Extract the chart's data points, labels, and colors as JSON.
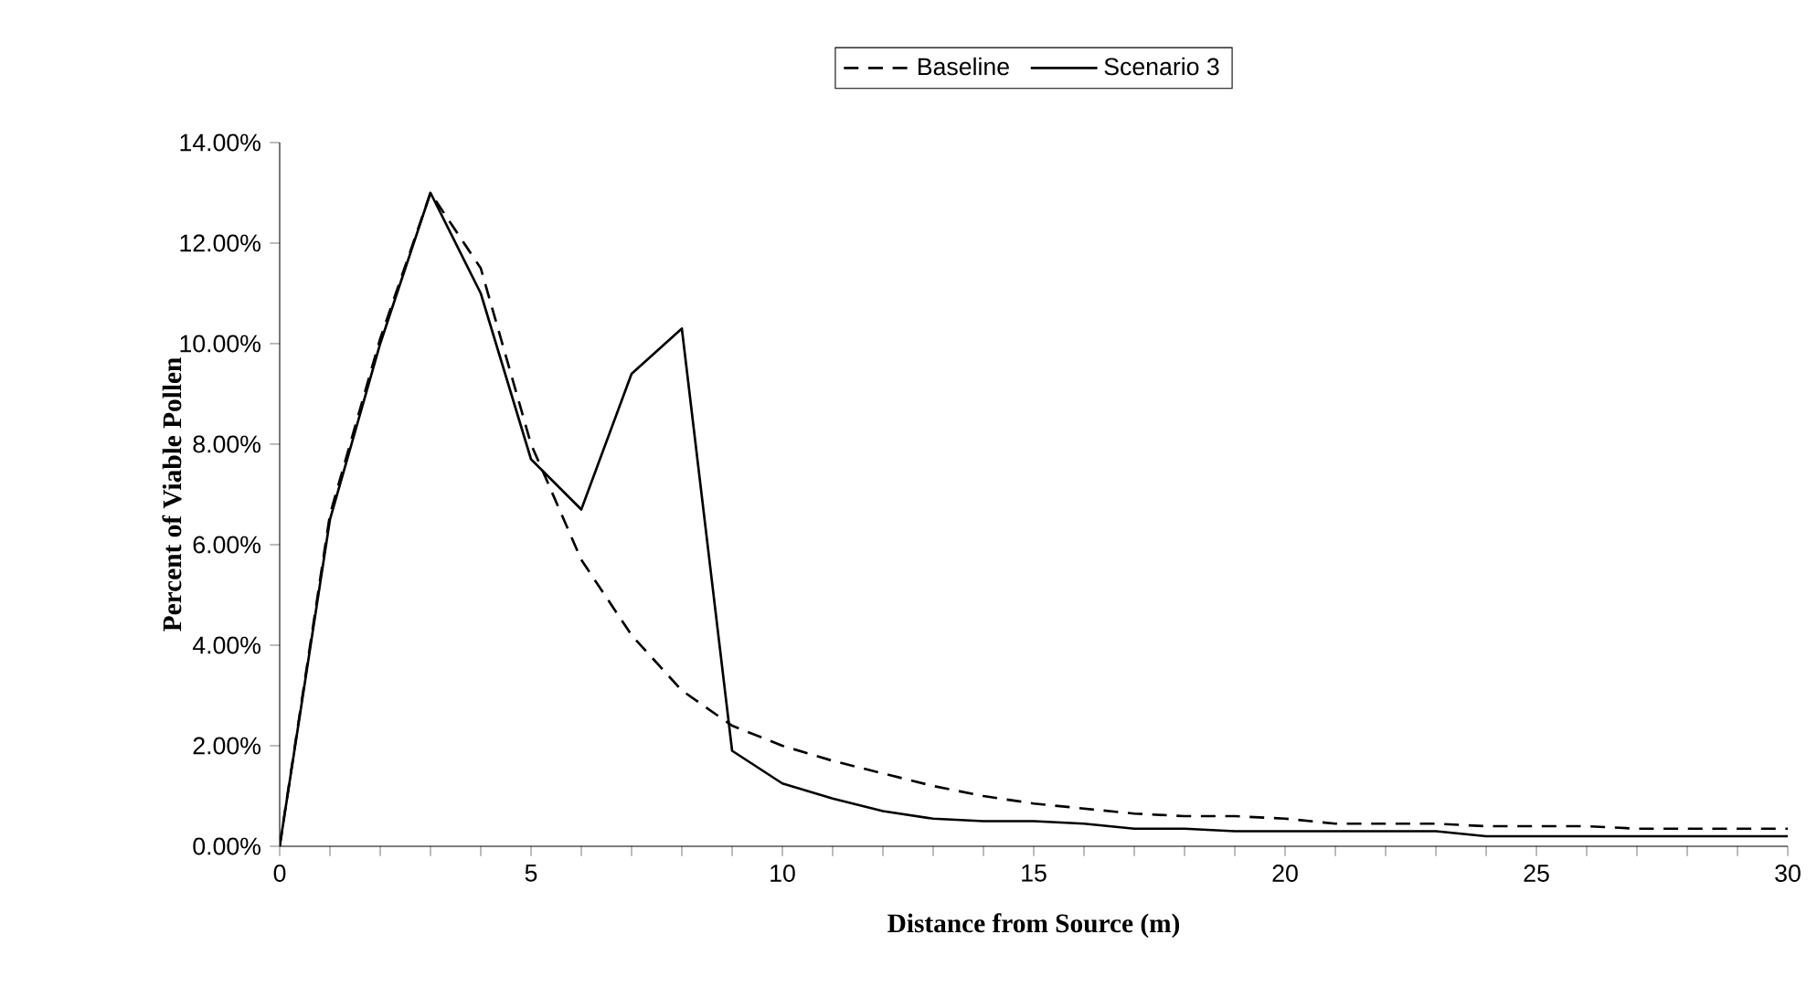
{
  "chart_data": {
    "type": "line",
    "xlabel": "Distance from Source (m)",
    "ylabel": "Percent of Viable Pollen",
    "xlim": [
      0,
      30
    ],
    "xticks": [
      0,
      {
        "value": 1,
        "label": null
      },
      {
        "value": 2,
        "label": null
      },
      {
        "value": 3,
        "label": null
      },
      {
        "value": 4,
        "label": null
      },
      5,
      {
        "value": 6,
        "label": null
      },
      {
        "value": 7,
        "label": null
      },
      {
        "value": 8,
        "label": null
      },
      {
        "value": 9,
        "label": null
      },
      10,
      {
        "value": 11,
        "label": null
      },
      {
        "value": 12,
        "label": null
      },
      {
        "value": 13,
        "label": null
      },
      {
        "value": 14,
        "label": null
      },
      15,
      {
        "value": 16,
        "label": null
      },
      {
        "value": 17,
        "label": null
      },
      {
        "value": 18,
        "label": null
      },
      {
        "value": 19,
        "label": null
      },
      20,
      {
        "value": 21,
        "label": null
      },
      {
        "value": 22,
        "label": null
      },
      {
        "value": 23,
        "label": null
      },
      {
        "value": 24,
        "label": null
      },
      25,
      {
        "value": 26,
        "label": null
      },
      {
        "value": 27,
        "label": null
      },
      {
        "value": 28,
        "label": null
      },
      {
        "value": 29,
        "label": null
      },
      30
    ],
    "ylim": [
      0,
      14
    ],
    "yticks": [
      {
        "value": 0,
        "label": "0.00%"
      },
      {
        "value": 2,
        "label": "2.00%"
      },
      {
        "value": 4,
        "label": "4.00%"
      },
      {
        "value": 6,
        "label": "6.00%"
      },
      {
        "value": 8,
        "label": "8.00%"
      },
      {
        "value": 10,
        "label": "10.00%"
      },
      {
        "value": 12,
        "label": "12.00%"
      },
      {
        "value": 14,
        "label": "14.00%"
      }
    ],
    "x": [
      0,
      1,
      2,
      3,
      4,
      5,
      6,
      7,
      8,
      9,
      10,
      11,
      12,
      13,
      14,
      15,
      16,
      17,
      18,
      19,
      20,
      21,
      22,
      23,
      24,
      25,
      26,
      27,
      28,
      29,
      30
    ],
    "legend": "top",
    "grid": false,
    "marker": "none",
    "series": [
      {
        "name": "Baseline",
        "color": "#000000",
        "line_style": "dashed",
        "values": [
          0,
          6.6,
          10.1,
          13.0,
          11.5,
          8.0,
          5.7,
          4.2,
          3.1,
          2.4,
          2.0,
          1.7,
          1.45,
          1.2,
          1.0,
          0.85,
          0.75,
          0.65,
          0.6,
          0.6,
          0.55,
          0.45,
          0.45,
          0.45,
          0.4,
          0.4,
          0.4,
          0.35,
          0.35,
          0.35,
          0.35
        ]
      },
      {
        "name": "Scenario 3",
        "color": "#000000",
        "line_style": "solid",
        "values": [
          0,
          6.5,
          10.0,
          13.0,
          11.0,
          7.7,
          6.7,
          9.4,
          10.3,
          1.9,
          1.25,
          0.95,
          0.7,
          0.55,
          0.5,
          0.5,
          0.45,
          0.35,
          0.35,
          0.3,
          0.3,
          0.3,
          0.3,
          0.3,
          0.2,
          0.2,
          0.2,
          0.2,
          0.2,
          0.2,
          0.2
        ]
      }
    ]
  }
}
